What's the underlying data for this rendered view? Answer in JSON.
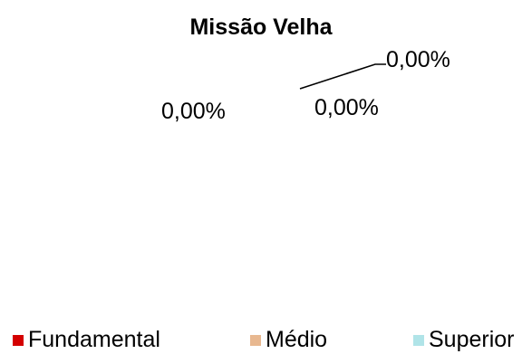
{
  "chart_data": {
    "type": "pie",
    "title": "Missão Velha",
    "categories": [
      "Fundamental",
      "Médio",
      "Superior"
    ],
    "values": [
      0,
      0,
      0
    ],
    "data_labels": [
      "0,00%",
      "0,00%",
      "0,00%"
    ],
    "series": [
      {
        "values": [
          0,
          0,
          0
        ]
      }
    ],
    "legend_position": "bottom",
    "colors": [
      "#d40000",
      "#e8b890",
      "#b0e4e8"
    ]
  }
}
